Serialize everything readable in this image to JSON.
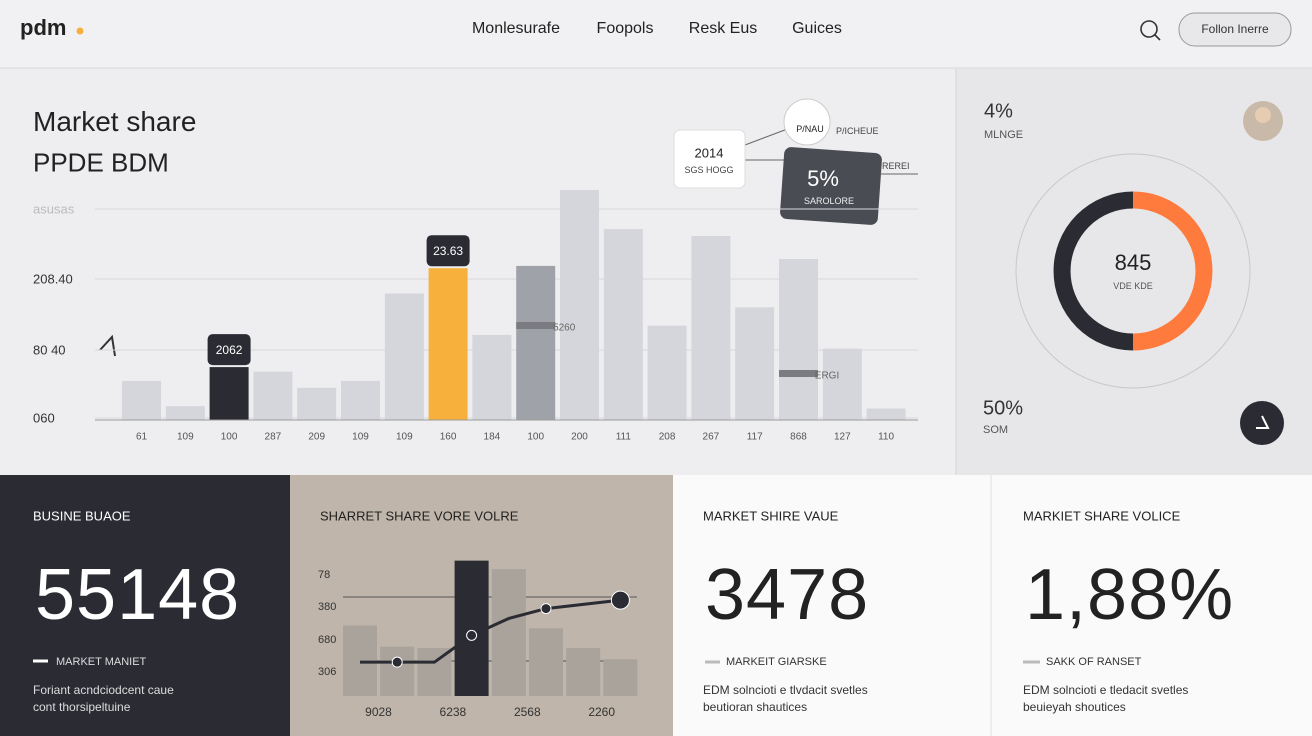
{
  "header": {
    "logo": "pdm",
    "nav": [
      "Monlesurafe",
      "Foopols",
      "Resk Eus",
      "Guices"
    ],
    "button": "Follon Inerre"
  },
  "hero": {
    "title": "Market share",
    "subtitle": "PPDE BDM",
    "y_labels": [
      "asusas",
      "208.40",
      "80 40",
      "060"
    ],
    "callouts": [
      "2062",
      "23.63"
    ],
    "inline_labels": [
      "5260",
      "ERGI"
    ],
    "card_a": {
      "year": "2014",
      "label": "SGS HOGG"
    },
    "card_b": {
      "value": "5%",
      "label": "SAROLORE"
    },
    "pin": "P/NAU",
    "tags": [
      "P/ICHEUE",
      "REREI"
    ]
  },
  "side": {
    "top_value": "4%",
    "top_label": "MLNGE",
    "donut_value": "845",
    "donut_label": "VDE KDE",
    "bottom_value": "50%",
    "bottom_label": "SOM"
  },
  "chart_data": [
    {
      "type": "bar",
      "categories": [
        "61",
        "109",
        "100",
        "287",
        "209",
        "109",
        "109",
        "160",
        "184",
        "100",
        "200",
        "111",
        "208",
        "267",
        "117",
        "868",
        "127",
        "110"
      ],
      "values": [
        17,
        6,
        23,
        21,
        14,
        17,
        55,
        66,
        37,
        67,
        100,
        83,
        41,
        80,
        49,
        70,
        31,
        5
      ],
      "colors": [
        "#d4d6db",
        "#d4d6db",
        "#2a2b33",
        "#d4d6db",
        "#d4d6db",
        "#d4d6db",
        "#d4d6db",
        "#f8b03c",
        "#d4d6db",
        "#9fa2a8",
        "#d4d6db",
        "#d4d6db",
        "#d4d6db",
        "#d4d6db",
        "#d4d6db",
        "#d4d6db",
        "#d4d6db",
        "#d4d6db"
      ],
      "ylim": [
        0,
        100
      ]
    },
    {
      "type": "bar",
      "title": "SHARRET SHARE VORE VOLRE",
      "y_labels": [
        "78",
        "380",
        "680",
        "306"
      ],
      "categories": [
        "9028",
        null,
        "6238",
        null,
        "2568",
        null,
        "2260",
        null
      ],
      "series": [
        {
          "values": [
            50,
            35,
            34,
            96,
            90,
            48,
            34,
            26
          ],
          "color": "#a9a39c"
        },
        {
          "values": [
            24,
            24,
            24,
            43,
            55,
            62,
            65,
            68
          ],
          "color": "#2a2b33",
          "style": "line"
        }
      ],
      "ylim": [
        0,
        100
      ]
    }
  ],
  "tiles": [
    {
      "title": "BUSINE BUAOE",
      "value": "55148",
      "legend": "MARKET MANIET",
      "text": [
        "Foriant acndciodcent caue",
        "cont thorsipeltuine"
      ]
    },
    {
      "title": "MARKET SHIRE VAUE",
      "value": "3478",
      "legend": "MARKEIT GIARSKE",
      "text": [
        "EDM solncioti e tlvdacit svetles",
        "beutioran shautices"
      ]
    },
    {
      "title": "MARKIET SHARE VOLICE",
      "value": "1,88%",
      "legend": "SAKK OF RANSET",
      "text": [
        "EDM solncioti e tledacit svetles",
        "beuieyah shoutices"
      ]
    }
  ]
}
